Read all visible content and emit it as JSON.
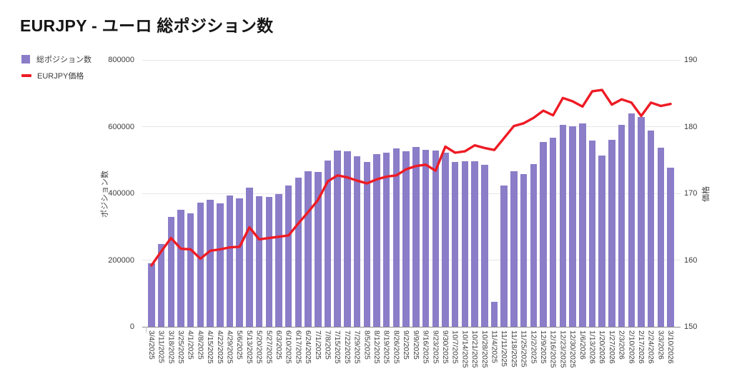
{
  "page_title": "EURJPY - ユーロ 総ポジション数",
  "legend": {
    "positions_label": "総ポジション数",
    "price_label": "EURJPY価格"
  },
  "colors": {
    "background": "#ffffff",
    "bar": "#8b7dc8",
    "line": "#ee1b24",
    "grid": "#e6e6e6",
    "axis_line": "#8a8a8a",
    "tick_text": "#3d3d3d"
  },
  "chart_data": {
    "type": "bar",
    "subtype": "bar-with-line-overlay",
    "grid": "horizontal-only",
    "legend_position": "top-left",
    "categories": [
      "3/4/2025",
      "3/11/2025",
      "3/18/2025",
      "3/25/2025",
      "4/1/2025",
      "4/8/2025",
      "4/15/2025",
      "4/22/2025",
      "4/29/2025",
      "5/6/2025",
      "5/13/2025",
      "5/20/2025",
      "5/27/2025",
      "6/3/2025",
      "6/10/2025",
      "6/17/2025",
      "6/24/2025",
      "7/1/2025",
      "7/8/2025",
      "7/15/2025",
      "7/22/2025",
      "7/29/2025",
      "8/5/2025",
      "8/12/2025",
      "8/19/2025",
      "8/26/2025",
      "9/2/2025",
      "9/9/2025",
      "9/16/2025",
      "9/23/2025",
      "9/30/2025",
      "10/7/2025",
      "10/14/2025",
      "10/21/2025",
      "10/28/2025",
      "11/4/2025",
      "11/11/2025",
      "11/18/2025",
      "11/25/2025",
      "12/2/2025",
      "12/9/2025",
      "12/16/2025",
      "12/23/2025",
      "12/30/2025",
      "1/6/2026",
      "1/13/2026",
      "1/20/2026",
      "1/27/2026",
      "2/3/2026",
      "2/10/2026",
      "2/17/2026",
      "2/24/2026",
      "3/3/2026",
      "3/10/2026"
    ],
    "series": [
      {
        "name": "総ポジション数",
        "type": "bar",
        "axis": "left",
        "values": [
          190000,
          248000,
          330000,
          351000,
          340000,
          373000,
          380000,
          371000,
          394000,
          386000,
          417000,
          392000,
          390000,
          399000,
          424000,
          448000,
          466000,
          465000,
          498000,
          529000,
          527000,
          512000,
          495000,
          518000,
          522000,
          534000,
          527000,
          540000,
          531000,
          529000,
          523000,
          495000,
          497000,
          497000,
          485000,
          75000,
          423000,
          466000,
          458000,
          488000,
          555000,
          568000,
          605000,
          601000,
          610000,
          559000,
          513000,
          560000,
          605000,
          640000,
          630000,
          588000,
          538000,
          477000
        ]
      },
      {
        "name": "EURJPY価格",
        "type": "line",
        "axis": "right",
        "values": [
          159.2,
          161.3,
          163.3,
          161.7,
          161.6,
          160.2,
          161.4,
          161.6,
          161.9,
          162.0,
          164.9,
          163.1,
          163.3,
          163.5,
          163.7,
          165.5,
          167.2,
          169.0,
          171.8,
          172.7,
          172.4,
          171.9,
          171.5,
          172.1,
          172.5,
          172.7,
          173.6,
          174.1,
          174.3,
          173.4,
          177.0,
          176.1,
          176.3,
          177.2,
          176.8,
          176.5,
          178.3,
          180.1,
          180.5,
          181.3,
          182.4,
          181.7,
          184.3,
          183.8,
          183.0,
          185.3,
          185.5,
          183.3,
          184.1,
          183.6,
          181.6,
          183.6,
          183.1,
          183.4
        ]
      }
    ],
    "left_axis": {
      "title": "ポジション数",
      "min": 0,
      "max": 800000,
      "ticks": [
        0,
        200000,
        400000,
        600000,
        800000
      ]
    },
    "right_axis": {
      "title": "価格",
      "min": 150,
      "max": 190,
      "ticks": [
        150,
        160,
        170,
        180,
        190
      ]
    }
  }
}
